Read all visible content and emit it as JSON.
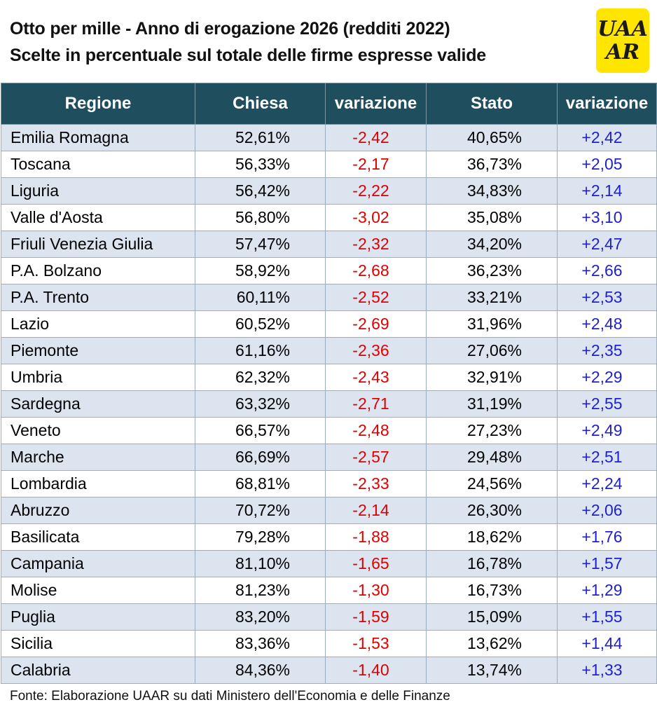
{
  "title": {
    "line1": "Otto per mille - Anno di erogazione 2026 (redditi 2022)",
    "line2": "Scelte in percentuale sul totale delle firme espresse valide"
  },
  "logo": {
    "line1": "UAA",
    "line2": "AR"
  },
  "table": {
    "headers": [
      "Regione",
      "Chiesa",
      "variazione",
      "Stato",
      "variazione"
    ],
    "rows": [
      [
        "Emilia Romagna",
        "52,61%",
        "-2,42",
        "40,65%",
        "+2,42"
      ],
      [
        "Toscana",
        "56,33%",
        "-2,17",
        "36,73%",
        "+2,05"
      ],
      [
        "Liguria",
        "56,42%",
        "-2,22",
        "34,83%",
        "+2,14"
      ],
      [
        "Valle d'Aosta",
        "56,80%",
        "-3,02",
        "35,08%",
        "+3,10"
      ],
      [
        "Friuli Venezia Giulia",
        "57,47%",
        "-2,32",
        "34,20%",
        "+2,47"
      ],
      [
        "P.A. Bolzano",
        "58,92%",
        "-2,68",
        "36,23%",
        "+2,66"
      ],
      [
        "P.A. Trento",
        "60,11%",
        "-2,52",
        "33,21%",
        "+2,53"
      ],
      [
        "Lazio",
        "60,52%",
        "-2,69",
        "31,96%",
        "+2,48"
      ],
      [
        "Piemonte",
        "61,16%",
        "-2,36",
        "27,06%",
        "+2,35"
      ],
      [
        "Umbria",
        "62,32%",
        "-2,43",
        "32,91%",
        "+2,29"
      ],
      [
        "Sardegna",
        "63,32%",
        "-2,71",
        "31,19%",
        "+2,55"
      ],
      [
        "Veneto",
        "66,57%",
        "-2,48",
        "27,23%",
        "+2,49"
      ],
      [
        "Marche",
        "66,69%",
        "-2,57",
        "29,48%",
        "+2,51"
      ],
      [
        "Lombardia",
        "68,81%",
        "-2,33",
        "24,56%",
        "+2,24"
      ],
      [
        "Abruzzo",
        "70,72%",
        "-2,14",
        "26,30%",
        "+2,06"
      ],
      [
        "Basilicata",
        "79,28%",
        "-1,88",
        "18,62%",
        "+1,76"
      ],
      [
        "Campania",
        "81,10%",
        "-1,65",
        "16,78%",
        "+1,57"
      ],
      [
        "Molise",
        "81,23%",
        "-1,30",
        "16,73%",
        "+1,29"
      ],
      [
        "Puglia",
        "83,20%",
        "-1,59",
        "15,09%",
        "+1,55"
      ],
      [
        "Sicilia",
        "83,36%",
        "-1,53",
        "13,62%",
        "+1,44"
      ],
      [
        "Calabria",
        "84,36%",
        "-1,40",
        "13,74%",
        "+1,33"
      ]
    ]
  },
  "footer": "Fonte: Elaborazione UAAR su dati Ministero dell'Economia e delle Finanze",
  "colors": {
    "header_bg": "#1f4e5f",
    "row_alt": "#dce4f0",
    "negative": "#e00000",
    "positive": "#1f1fd0",
    "logo_bg": "#ffe500"
  }
}
